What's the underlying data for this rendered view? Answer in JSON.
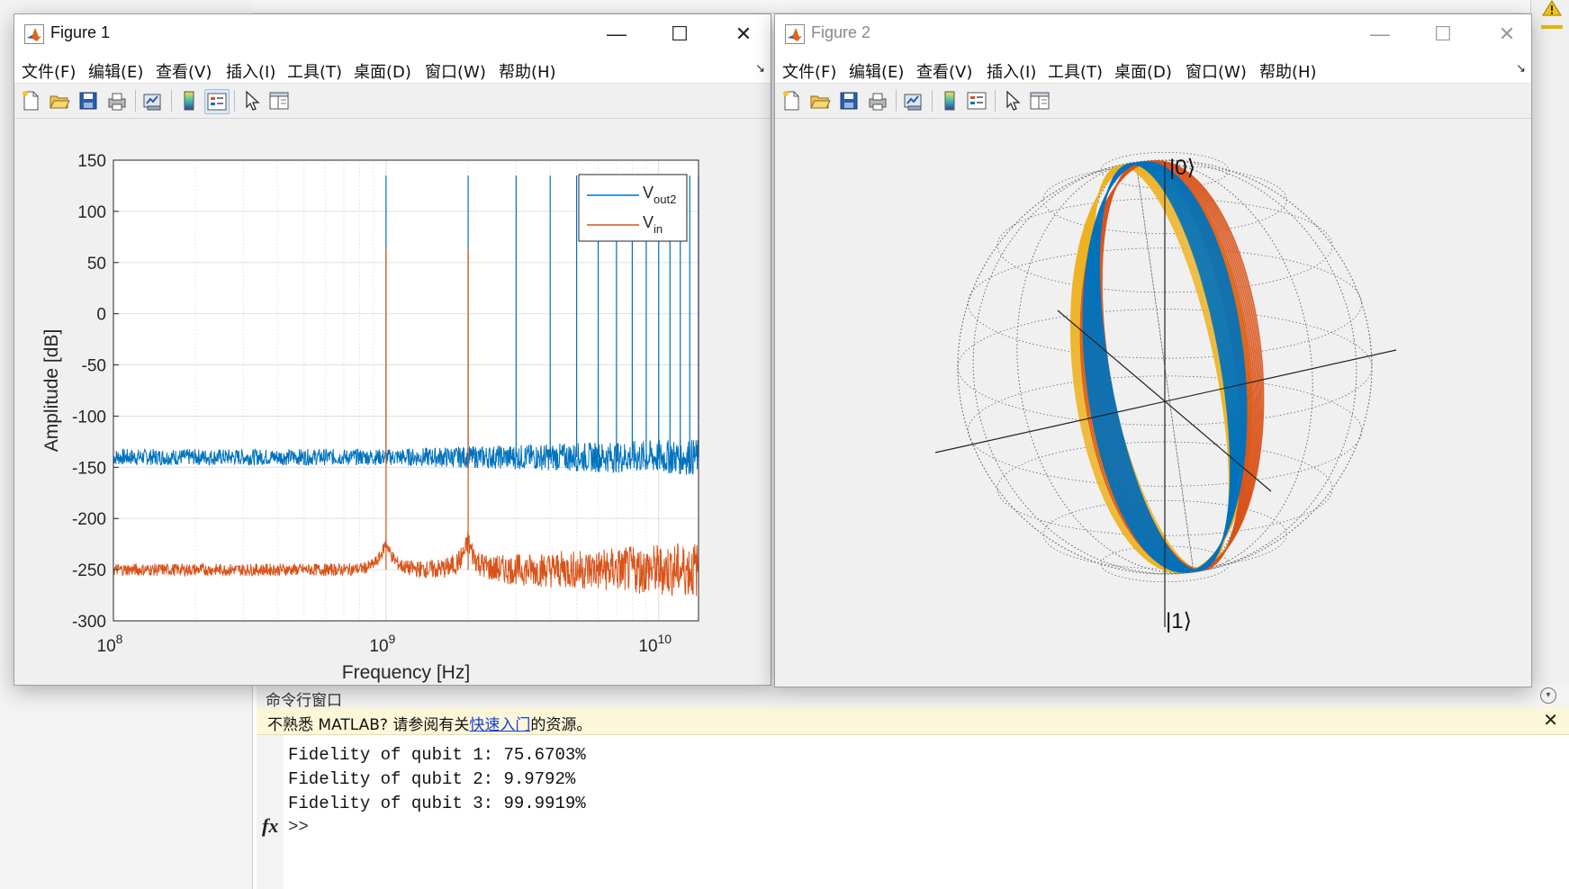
{
  "figure1": {
    "title": "Figure 1",
    "menu": [
      "文件(F)",
      "编辑(E)",
      "查看(V)",
      "插入(I)",
      "工具(T)",
      "桌面(D)",
      "窗口(W)",
      "帮助(H)"
    ],
    "toolbar_icons": [
      "new-figure-icon",
      "open-icon",
      "save-icon",
      "print-icon",
      "link-plot-icon",
      "colorbar-icon",
      "legend-icon",
      "pointer-icon",
      "property-inspector-icon"
    ],
    "chart_data": {
      "type": "line",
      "xlabel": "Frequency [Hz]",
      "ylabel": "Amplitude [dB]",
      "xscale": "log",
      "xlim": [
        100000000.0,
        14000000000.0
      ],
      "ylim": [
        -300,
        150
      ],
      "x_tick_labels": [
        "10^8",
        "10^9",
        "10^10"
      ],
      "y_ticks": [
        150,
        100,
        50,
        0,
        -50,
        -100,
        -150,
        -200,
        -250,
        -300
      ],
      "grid": true,
      "legend_position": "top-right",
      "series": [
        {
          "name": "V_out2",
          "color": "#0072BD",
          "noise_floor_db": -140,
          "peaks_hz": [
            1000000000.0,
            2000000000.0,
            3000000000.0,
            4000000000.0,
            5000000000.0,
            6000000000.0,
            7000000000.0,
            8000000000.0,
            9000000000.0,
            10000000000.0,
            11000000000.0,
            12000000000.0,
            13000000000.0,
            14000000000.0
          ],
          "peak_db": 135
        },
        {
          "name": "V_in",
          "color": "#D95319",
          "noise_floor_db": -250,
          "peaks_hz": [
            1000000000.0,
            2000000000.0
          ],
          "peak_db": 65
        }
      ],
      "legend": {
        "items": [
          {
            "main": "V",
            "sub": "out2"
          },
          {
            "main": "V",
            "sub": "in"
          }
        ]
      }
    }
  },
  "figure2": {
    "title": "Figure 2",
    "menu": [
      "文件(F)",
      "编辑(E)",
      "查看(V)",
      "插入(I)",
      "工具(T)",
      "桌面(D)",
      "窗口(W)",
      "帮助(H)"
    ],
    "toolbar_icons": [
      "new-figure-icon",
      "open-icon",
      "save-icon",
      "print-icon",
      "link-plot-icon",
      "colorbar-icon",
      "legend-icon",
      "pointer-icon",
      "property-inspector-icon"
    ],
    "bloch_labels": {
      "top": "|0⟩",
      "bottom": "|1⟩"
    },
    "trajectory_colors": [
      "#0072BD",
      "#D95319",
      "#EDB120"
    ]
  },
  "command_window": {
    "title": "命令行窗口",
    "notice_prefix": "不熟悉 MATLAB? 请参阅有关",
    "notice_link": "快速入门",
    "notice_suffix": "的资源。",
    "lines": [
      "Fidelity of qubit 1: 75.6703%",
      "Fidelity of qubit 2: 9.9792%",
      "Fidelity of qubit 3: 99.9919%"
    ],
    "fx_symbol": "fx",
    "prompt": ">>"
  }
}
